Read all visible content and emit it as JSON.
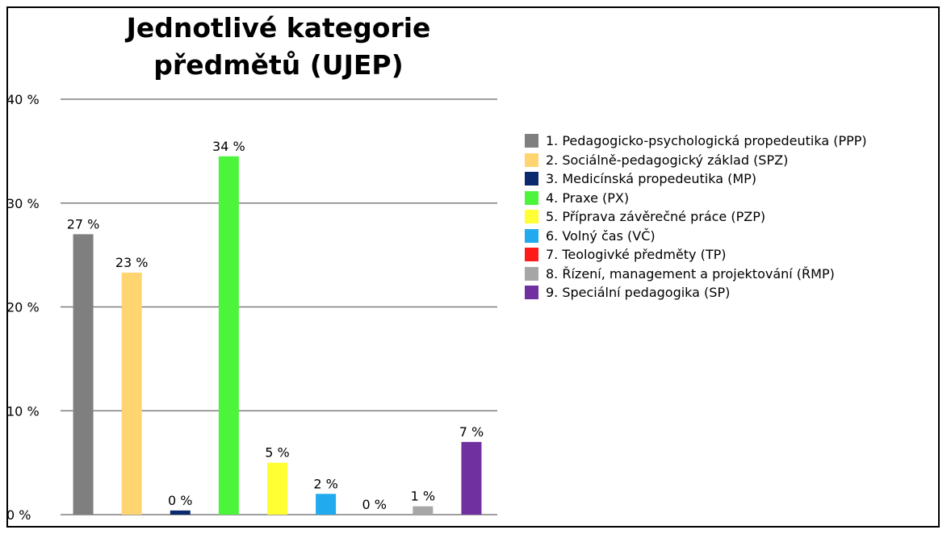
{
  "chart_data": {
    "type": "bar",
    "title": [
      "Jednotlivé kategorie",
      "předmětů (UJEP)"
    ],
    "xlabel": "",
    "ylabel": "",
    "ylim": [
      0,
      40
    ],
    "yticks": [
      "0 %",
      "10 %",
      "20 %",
      "30 %",
      "40 %"
    ],
    "ytick_values": [
      0,
      10,
      20,
      30,
      40
    ],
    "grid": true,
    "legend_position": "right",
    "categories": [
      "1. Pedagogicko-psychologická propedeutika (PPP)",
      "2. Sociálně-pedagogický základ (SPZ)",
      "3. Medicínská propedeutika (MP)",
      "4. Praxe (PX)",
      "5. Příprava závěrečné práce (PZP)",
      "6. Volný čas (VČ)",
      "7. Teologivké předměty (TP)",
      "8. Řízení, management a projektování (ŘMP)",
      "9. Speciální pedagogika (SP)"
    ],
    "values": [
      27,
      23.3,
      0.4,
      34.5,
      5,
      2,
      0,
      0.8,
      7
    ],
    "data_labels": [
      "27 %",
      "23 %",
      "0 %",
      "34 %",
      "5 %",
      "2 %",
      "0 %",
      "1 %",
      "7 %"
    ],
    "colors": [
      "#7f7f7f",
      "#ffd572",
      "#0b2a6e",
      "#4cf43c",
      "#ffff33",
      "#21aaee",
      "#ff1a1a",
      "#a6a6a6",
      "#7030a0"
    ]
  }
}
